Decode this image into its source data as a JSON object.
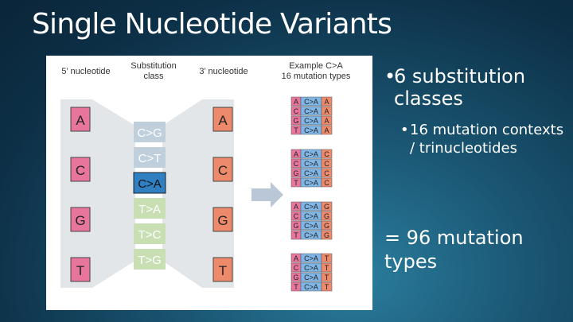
{
  "title": "Single Nucleotide Variants",
  "figure": {
    "header_5prime": "5’ nucleotide",
    "header_substitution": [
      "Substitution",
      "class"
    ],
    "header_3prime": "3’ nucleotide",
    "header_example": [
      "Example C>A",
      "16 mutation types"
    ],
    "nucleotides_5prime": [
      "A",
      "C",
      "G",
      "T"
    ],
    "substitution_classes": [
      {
        "label": "C>G",
        "color": "#bfcfdc",
        "text": "#ffffff",
        "highlight": false
      },
      {
        "label": "C>T",
        "color": "#bfcfdc",
        "text": "#ffffff",
        "highlight": false
      },
      {
        "label": "C>A",
        "color": "#2f7fc1",
        "text": "#111111",
        "highlight": true
      },
      {
        "label": "T>A",
        "color": "#c8dfb3",
        "text": "#ffffff",
        "highlight": false
      },
      {
        "label": "T>C",
        "color": "#c8dfb3",
        "text": "#ffffff",
        "highlight": false
      },
      {
        "label": "T>G",
        "color": "#c8dfb3",
        "text": "#ffffff",
        "highlight": false
      }
    ],
    "nucleotides_3prime": [
      "A",
      "C",
      "G",
      "T"
    ],
    "example_center": "C>A",
    "trinucleotide_groups": [
      {
        "three_prime": "A",
        "five_primes": [
          "A",
          "C",
          "G",
          "T"
        ]
      },
      {
        "three_prime": "C",
        "five_primes": [
          "A",
          "C",
          "G",
          "T"
        ]
      },
      {
        "three_prime": "G",
        "five_primes": [
          "A",
          "C",
          "G",
          "T"
        ]
      },
      {
        "three_prime": "T",
        "five_primes": [
          "A",
          "C",
          "G",
          "T"
        ]
      }
    ],
    "colors": {
      "five_prime_box": "#e8769c",
      "three_prime_box": "#ee8a6c",
      "center_box": "#7fb6e6",
      "funnel": "#e3e6e9",
      "arrow": "#b9c7d6"
    }
  },
  "bullets": {
    "level1": "6 substitution classes",
    "level2": "16 mutation contexts / trinucleotides",
    "summary": "= 96 mutation types"
  }
}
